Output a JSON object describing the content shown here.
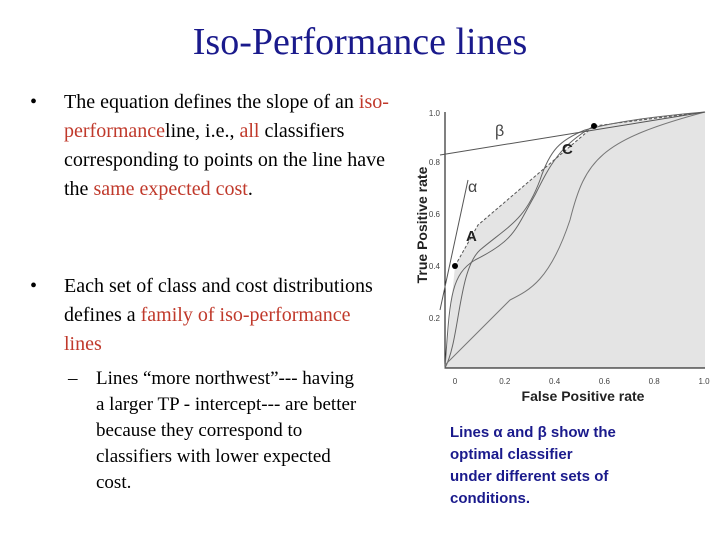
{
  "title": "Iso-Performance lines",
  "bullets": [
    {
      "segments": [
        {
          "text": "The equation defines the slope of an "
        },
        {
          "text": "iso-performance",
          "color": "#c0392b"
        },
        {
          "text": "line, i.e., "
        },
        {
          "text": "all",
          "color": "#c0392b"
        },
        {
          "text": " classifiers corresponding to points on the line have the "
        },
        {
          "text": "same expected cost",
          "color": "#c0392b"
        },
        {
          "text": "."
        }
      ]
    },
    {
      "segments": [
        {
          "text": "Each set of class and cost distributions defines a "
        },
        {
          "text": "family of iso-performance lines",
          "color": "#c0392b"
        }
      ],
      "sub": "Lines “more northwest”--- having a larger TP - intercept--- are better because they correspond to classifiers with lower expected cost."
    }
  ],
  "figure": {
    "y_label": "True Positive rate",
    "x_label": "False Positive rate",
    "y_ticks": [
      "1.0",
      "0.8",
      "0.6",
      "0.4",
      "0.2"
    ],
    "x_ticks": [
      "0",
      "0.2",
      "0.4",
      "0.6",
      "0.8",
      "1.0"
    ],
    "labels": {
      "beta": "β",
      "alpha": "α",
      "c": "C",
      "a": "A"
    }
  },
  "caption": [
    "Lines α and β show the",
    "optimal classifier",
    "under different sets of",
    "conditions."
  ]
}
